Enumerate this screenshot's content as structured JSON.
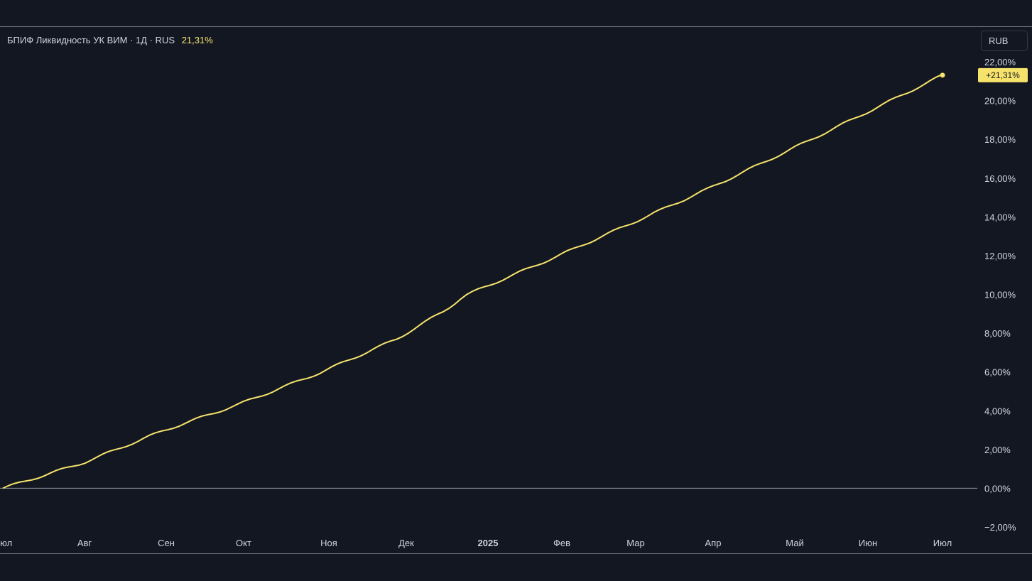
{
  "header": {
    "instrument": "БПИФ Ликвидность УК ВИМ · 1Д · RUS",
    "change": "21,31%"
  },
  "controls": {
    "currency": "RUB"
  },
  "chart_data": {
    "type": "line",
    "title": "БПИФ Ликвидность УК ВИМ · 1Д · RUS",
    "xlabel": "",
    "ylabel": "",
    "ylim": [
      -2,
      22
    ],
    "grid": false,
    "y_ticks": [
      "22,00%",
      "20,00%",
      "18,00%",
      "16,00%",
      "14,00%",
      "12,00%",
      "10,00%",
      "8,00%",
      "6,00%",
      "4,00%",
      "2,00%",
      "0,00%",
      "−2,00%"
    ],
    "x_ticks": [
      {
        "label": "Июл",
        "bold": false
      },
      {
        "label": "Авг",
        "bold": false
      },
      {
        "label": "Сен",
        "bold": false
      },
      {
        "label": "Окт",
        "bold": false
      },
      {
        "label": "Ноя",
        "bold": false
      },
      {
        "label": "Дек",
        "bold": false
      },
      {
        "label": "2025",
        "bold": true
      },
      {
        "label": "Фев",
        "bold": false
      },
      {
        "label": "Мар",
        "bold": false
      },
      {
        "label": "Апр",
        "bold": false
      },
      {
        "label": "Май",
        "bold": false
      },
      {
        "label": "Июн",
        "bold": false
      },
      {
        "label": "Июл",
        "bold": false
      }
    ],
    "series": [
      {
        "color": "#f6e36b",
        "x": [
          "2024-07-01",
          "2024-08-01",
          "2024-09-01",
          "2024-10-01",
          "2024-11-01",
          "2024-12-01",
          "2024-12-20",
          "2024-12-27",
          "2025-01-01",
          "2025-02-01",
          "2025-03-01",
          "2025-04-01",
          "2025-05-01",
          "2025-06-01",
          "2025-07-01"
        ],
        "values": [
          0.0,
          1.3,
          2.95,
          4.35,
          5.95,
          7.7,
          9.2,
          9.9,
          10.2,
          11.95,
          13.6,
          15.45,
          17.35,
          19.35,
          21.31
        ]
      }
    ],
    "last_value_label": "+21,31%",
    "baseline_value": 0
  },
  "colors": {
    "background": "#131722",
    "line": "#f6e36b",
    "text": "#d1d4dc",
    "baseline": "#9598a1"
  }
}
